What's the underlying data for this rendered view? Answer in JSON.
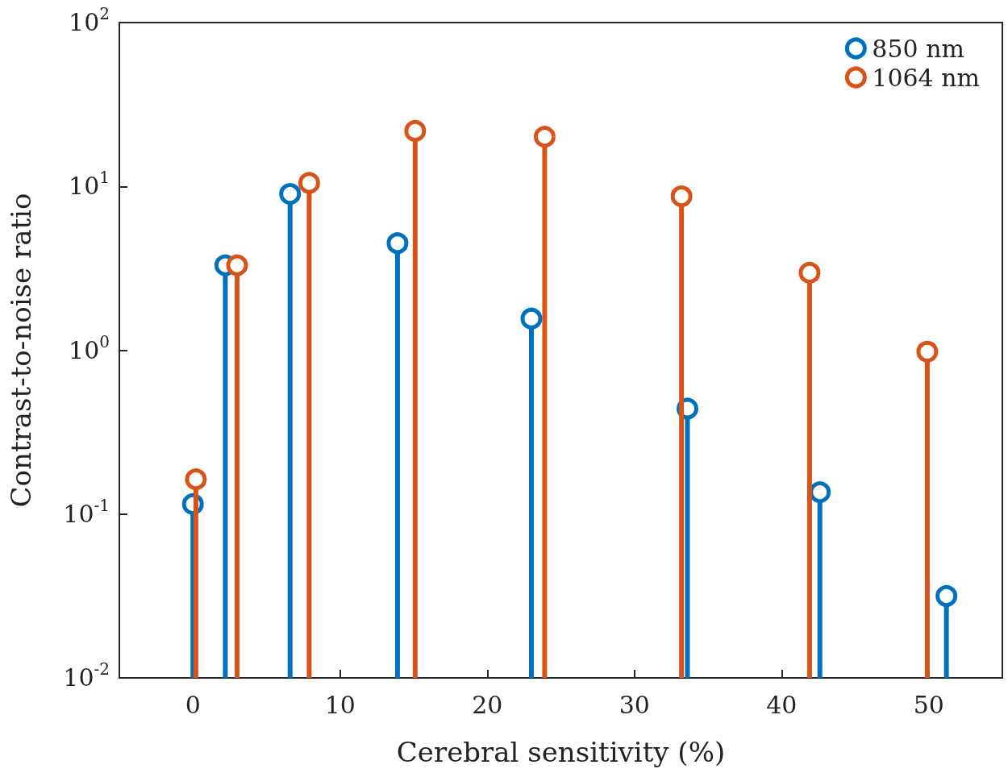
{
  "chart_data": {
    "type": "lollipop",
    "xlabel": "Cerebral sensitivity (%)",
    "ylabel": "Contrast-to-noise ratio",
    "log": "y",
    "grid": false,
    "legend": "top right",
    "marker": "circle",
    "xlim": [
      -5,
      55
    ],
    "xticks": [
      0,
      10,
      20,
      30,
      40,
      50
    ],
    "ylim": [
      0.01,
      100
    ],
    "yticks": [
      {
        "value": 0.01,
        "label": "10$^{-2}$"
      },
      {
        "value": 0.1,
        "label": "10$^{-1}$"
      },
      {
        "value": 1,
        "label": "10$^{0}$"
      },
      {
        "value": 10,
        "label": "10$^{1}$"
      },
      {
        "value": 100,
        "label": "10$^{2}$"
      }
    ],
    "series": [
      {
        "name": "850 nm",
        "color": "#0072bd",
        "x": [
          0,
          2.2,
          6.6,
          13.9,
          23.0,
          33.6,
          42.6,
          51.2
        ],
        "values": [
          0.115,
          3.3,
          9.0,
          4.5,
          1.56,
          0.44,
          0.136,
          0.0316
        ]
      },
      {
        "name": "1064 nm",
        "color": "#d95319",
        "x": [
          0.2,
          3.0,
          7.9,
          15.1,
          23.9,
          33.2,
          41.9,
          49.9
        ],
        "values": [
          0.163,
          3.3,
          10.5,
          21.8,
          20.1,
          8.7,
          2.97,
          0.98
        ]
      }
    ]
  }
}
